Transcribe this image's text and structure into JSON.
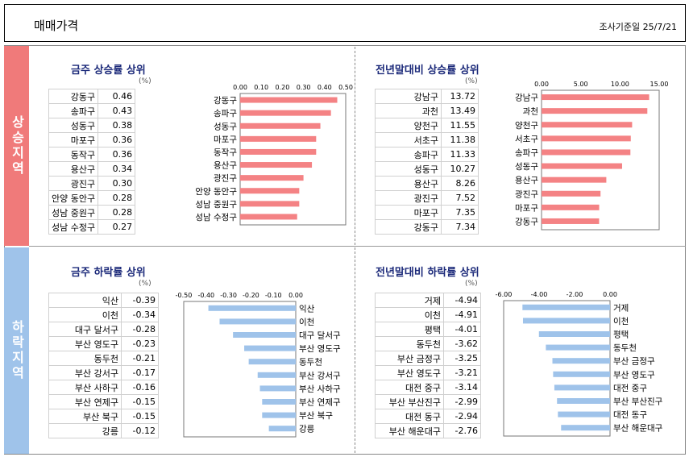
{
  "header": {
    "title": "매매가격",
    "date": "조사기준일 25/7/21"
  },
  "side": {
    "up": "상승지역",
    "down": "하락지역"
  },
  "unit": "(%)",
  "colors": {
    "up": "#f48284",
    "down": "#9fc3ea"
  },
  "panels": [
    {
      "title": "금주 상승률 상위",
      "rows": [
        {
          "name": "강동구",
          "value": "0.46"
        },
        {
          "name": "송파구",
          "value": "0.43"
        },
        {
          "name": "성동구",
          "value": "0.38"
        },
        {
          "name": "마포구",
          "value": "0.36"
        },
        {
          "name": "동작구",
          "value": "0.36"
        },
        {
          "name": "용산구",
          "value": "0.34"
        },
        {
          "name": "광진구",
          "value": "0.30"
        },
        {
          "name": "안양 동안구",
          "value": "0.28"
        },
        {
          "name": "성남 중원구",
          "value": "0.28"
        },
        {
          "name": "성남 수정구",
          "value": "0.27"
        }
      ]
    },
    {
      "title": "전년말대비 상승률 상위",
      "rows": [
        {
          "name": "강남구",
          "value": "13.72"
        },
        {
          "name": "과천",
          "value": "13.49"
        },
        {
          "name": "양천구",
          "value": "11.55"
        },
        {
          "name": "서초구",
          "value": "11.38"
        },
        {
          "name": "송파구",
          "value": "11.33"
        },
        {
          "name": "성동구",
          "value": "10.27"
        },
        {
          "name": "용산구",
          "value": "8.26"
        },
        {
          "name": "광진구",
          "value": "7.52"
        },
        {
          "name": "마포구",
          "value": "7.35"
        },
        {
          "name": "강동구",
          "value": "7.34"
        }
      ]
    },
    {
      "title": "금주 하락률 상위",
      "rows": [
        {
          "name": "익산",
          "value": "-0.39"
        },
        {
          "name": "이천",
          "value": "-0.34"
        },
        {
          "name": "대구 달서구",
          "value": "-0.28"
        },
        {
          "name": "부산 영도구",
          "value": "-0.23"
        },
        {
          "name": "동두천",
          "value": "-0.21"
        },
        {
          "name": "부산 강서구",
          "value": "-0.17"
        },
        {
          "name": "부산 사하구",
          "value": "-0.16"
        },
        {
          "name": "부산 연제구",
          "value": "-0.15"
        },
        {
          "name": "부산 북구",
          "value": "-0.15"
        },
        {
          "name": "강릉",
          "value": "-0.12"
        }
      ]
    },
    {
      "title": "전년말대비 하락률 상위",
      "rows": [
        {
          "name": "거제",
          "value": "-4.94"
        },
        {
          "name": "이천",
          "value": "-4.91"
        },
        {
          "name": "평택",
          "value": "-4.01"
        },
        {
          "name": "동두천",
          "value": "-3.62"
        },
        {
          "name": "부산 금정구",
          "value": "-3.25"
        },
        {
          "name": "부산 영도구",
          "value": "-3.21"
        },
        {
          "name": "대전 중구",
          "value": "-3.14"
        },
        {
          "name": "부산 부산진구",
          "value": "-2.99"
        },
        {
          "name": "대전 동구",
          "value": "-2.94"
        },
        {
          "name": "부산 해운대구",
          "value": "-2.76"
        }
      ]
    }
  ],
  "chart_data": [
    {
      "type": "bar",
      "orientation": "horizontal",
      "categories": [
        "강동구",
        "송파구",
        "성동구",
        "마포구",
        "동작구",
        "용산구",
        "광진구",
        "안양 동안구",
        "성남 중원구",
        "성남 수정구"
      ],
      "values": [
        0.46,
        0.43,
        0.38,
        0.36,
        0.36,
        0.34,
        0.3,
        0.28,
        0.28,
        0.27
      ],
      "xlim": [
        0,
        0.5
      ],
      "ticks": [
        "0.00",
        "0.10",
        "0.20",
        "0.30",
        "0.40",
        "0.50"
      ],
      "axis_position": "top"
    },
    {
      "type": "bar",
      "orientation": "horizontal",
      "categories": [
        "강남구",
        "과천",
        "양천구",
        "서초구",
        "송파구",
        "성동구",
        "용산구",
        "광진구",
        "마포구",
        "강동구"
      ],
      "values": [
        13.72,
        13.49,
        11.55,
        11.38,
        11.33,
        10.27,
        8.26,
        7.52,
        7.35,
        7.34
      ],
      "xlim": [
        0,
        15
      ],
      "ticks": [
        "0.00",
        "5.00",
        "10.00",
        "15.00"
      ],
      "axis_position": "top"
    },
    {
      "type": "bar",
      "orientation": "horizontal",
      "categories": [
        "익산",
        "이천",
        "대구 달서구",
        "부산 영도구",
        "동두천",
        "부산 강서구",
        "부산 사하구",
        "부산 연제구",
        "부산 북구",
        "강릉"
      ],
      "values": [
        -0.39,
        -0.34,
        -0.28,
        -0.23,
        -0.21,
        -0.17,
        -0.16,
        -0.15,
        -0.15,
        -0.12
      ],
      "xlim": [
        -0.5,
        0
      ],
      "ticks": [
        "-0.50",
        "-0.40",
        "-0.30",
        "-0.20",
        "-0.10",
        "0.00"
      ],
      "axis_position": "top"
    },
    {
      "type": "bar",
      "orientation": "horizontal",
      "categories": [
        "거제",
        "이천",
        "평택",
        "동두천",
        "부산 금정구",
        "부산 영도구",
        "대전 중구",
        "부산 부산진구",
        "대전 동구",
        "부산 해운대구"
      ],
      "values": [
        -4.94,
        -4.91,
        -4.01,
        -3.62,
        -3.25,
        -3.21,
        -3.14,
        -2.99,
        -2.94,
        -2.76
      ],
      "xlim": [
        -6,
        0
      ],
      "ticks": [
        "-6.00",
        "-4.00",
        "-2.00",
        "0.00"
      ],
      "axis_position": "top"
    }
  ]
}
